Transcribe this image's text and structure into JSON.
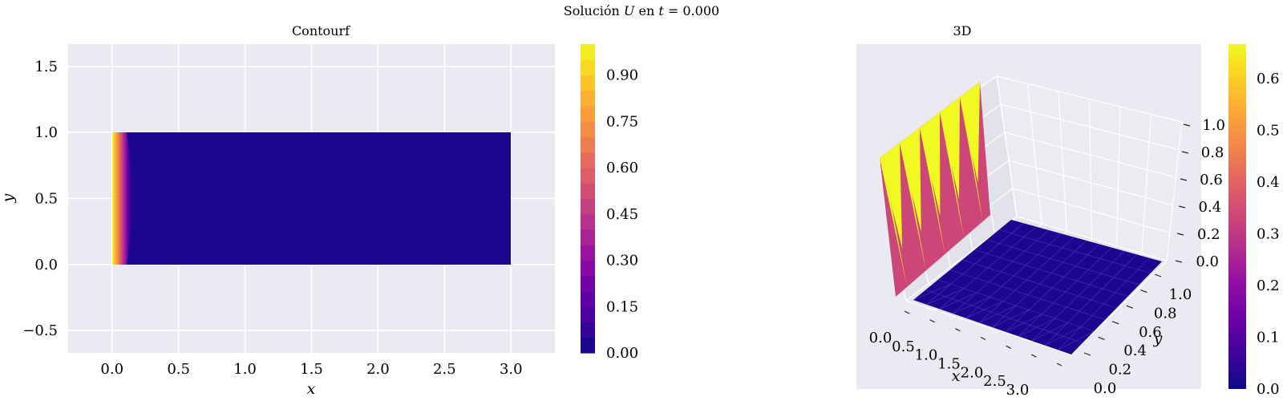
{
  "figure": {
    "suptitle": "Solución U en t =  0.000"
  },
  "chart_data": [
    {
      "type": "contour",
      "title": "Contourf",
      "xlabel": "x",
      "ylabel": "y",
      "xlim": [
        -0.33,
        3.33
      ],
      "ylim": [
        -0.67,
        1.67
      ],
      "xticks": [
        "0.0",
        "0.5",
        "1.0",
        "1.5",
        "2.0",
        "2.5",
        "3.0"
      ],
      "xtick_values": [
        0,
        0.5,
        1,
        1.5,
        2,
        2.5,
        3
      ],
      "yticks": [
        "−0.5",
        "0.0",
        "0.5",
        "1.0",
        "1.5"
      ],
      "ytick_values": [
        -0.5,
        0,
        0.5,
        1,
        1.5
      ],
      "grid": true,
      "domain": {
        "x": [
          0,
          3
        ],
        "y": [
          0,
          1
        ]
      },
      "field": "U(x,y) = 1 near x = 0, dropping to 0 by x ≈ 0.15; 0 elsewhere",
      "colormap": "plasma",
      "colorbar": {
        "ticks": [
          "0.00",
          "0.15",
          "0.30",
          "0.45",
          "0.60",
          "0.75",
          "0.90"
        ],
        "tick_values": [
          0,
          0.15,
          0.3,
          0.45,
          0.6,
          0.75,
          0.9
        ],
        "range": [
          0,
          1
        ],
        "levels": 20
      }
    },
    {
      "type": "surface3d",
      "title": "3D",
      "xlabel": "x",
      "ylabel": "y",
      "xticks": [
        "0.0",
        "0.5",
        "1.0",
        "1.5",
        "2.0",
        "2.5",
        "3.0"
      ],
      "yticks": [
        "0.0",
        "0.2",
        "0.4",
        "0.6",
        "0.8",
        "1.0"
      ],
      "zticks": [
        "0.0",
        "0.2",
        "0.4",
        "0.6",
        "0.8",
        "1.0"
      ],
      "grid": true,
      "surface": "triangulated U: ridge of height 1 along x = 0, flat 0 elsewhere",
      "colormap": "plasma",
      "colorbar": {
        "ticks": [
          "0.0",
          "0.1",
          "0.2",
          "0.3",
          "0.4",
          "0.5",
          "0.6"
        ],
        "tick_values": [
          0,
          0.1,
          0.2,
          0.3,
          0.4,
          0.5,
          0.6
        ],
        "range": [
          0,
          0.667
        ]
      }
    }
  ],
  "colors": {
    "axes_bg": "#eaeaf2",
    "grid": "#ffffff",
    "text": "#262626",
    "pane_left": "#e2e2ea",
    "pane_right": "#ebebf0",
    "pane_floor": "#e4e4ec",
    "low": "#1c068f",
    "ridge_side": "#cc4778",
    "ridge_top": "#f0f921"
  }
}
